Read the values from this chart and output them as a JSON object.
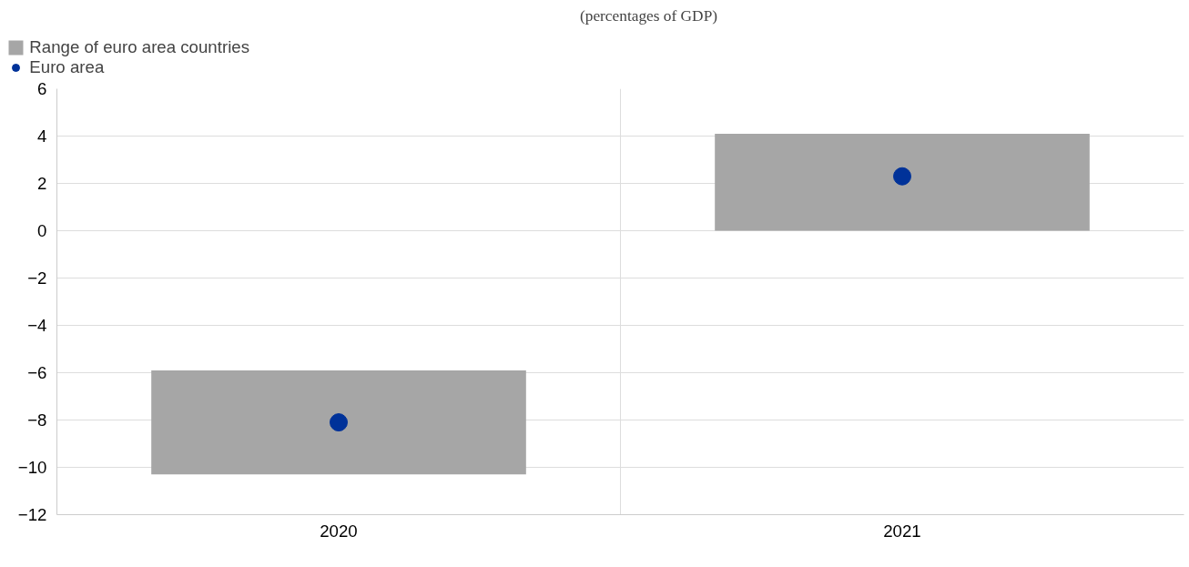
{
  "chart_data": {
    "type": "bar",
    "title": "(percentages of GDP)",
    "categories": [
      "2020",
      "2021"
    ],
    "series": [
      {
        "name": "Range of euro area countries",
        "color": "#a6a6a6",
        "base": [
          -10.3,
          0
        ],
        "values": [
          4.4,
          4.1
        ]
      },
      {
        "name": "Euro area",
        "type": "scatter",
        "color": "#003299",
        "values": [
          -8.1,
          2.3
        ],
        "marker": "circle"
      }
    ],
    "ylim": [
      -12,
      6
    ],
    "yticks": [
      -12,
      -10,
      -8,
      -6,
      -4,
      -2,
      0,
      2,
      4,
      6
    ],
    "grid": true,
    "legend": "top left"
  }
}
